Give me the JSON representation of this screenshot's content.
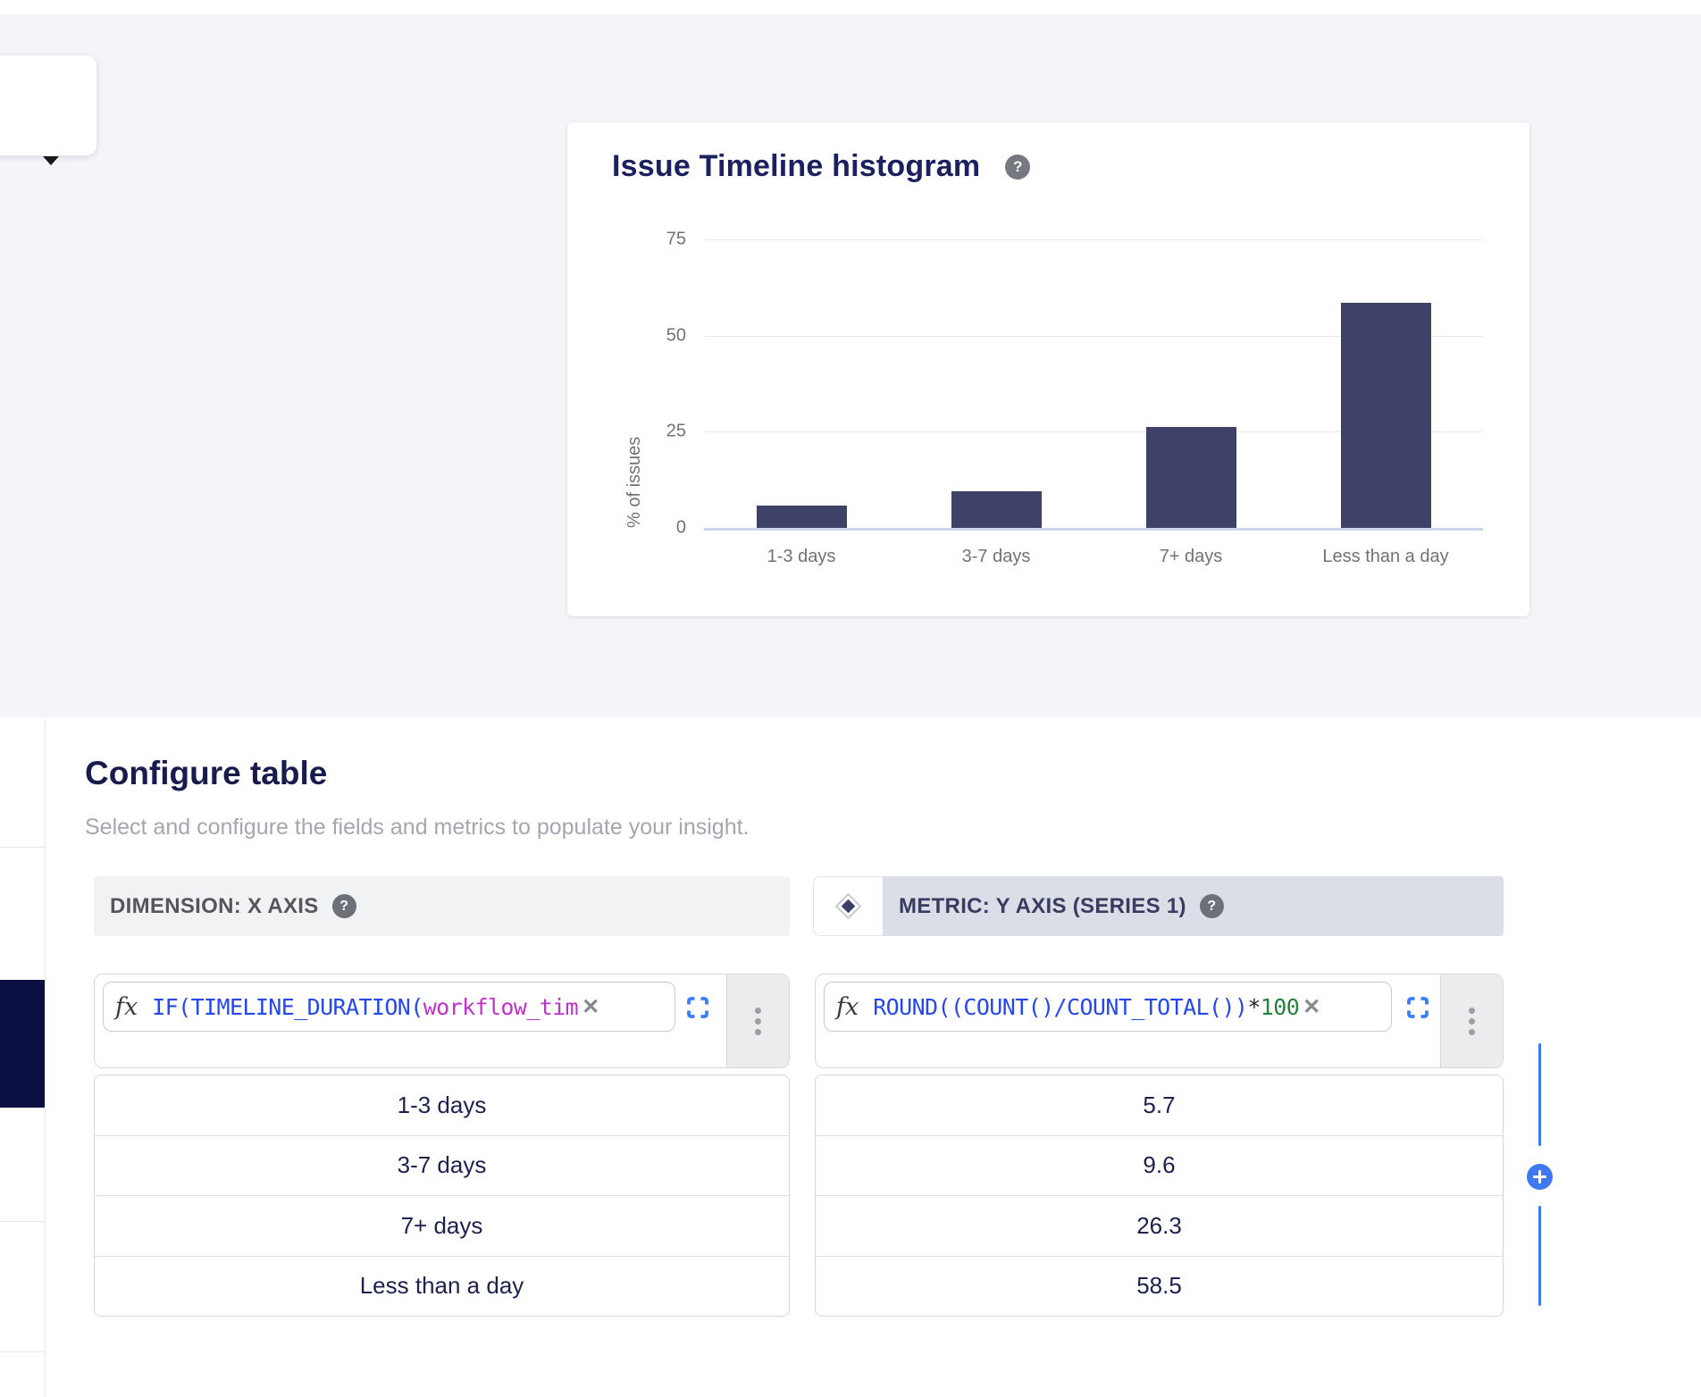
{
  "glyphs": {
    "help": "?",
    "close": "✕",
    "fx": "fx"
  },
  "chart_data": {
    "type": "bar",
    "title": "Issue Timeline histogram",
    "categories": [
      "1-3 days",
      "3-7 days",
      "7+ days",
      "Less than a day"
    ],
    "values": [
      5.7,
      9.6,
      26.3,
      58.5
    ],
    "xlabel": "",
    "ylabel": "% of issues",
    "ylim": [
      0,
      75
    ],
    "yticks": [
      0,
      25,
      50,
      75
    ],
    "grid": true,
    "legend": "none",
    "bar_color": "#3f4268"
  },
  "configure": {
    "heading": "Configure table",
    "subtitle": "Select and configure the fields and metrics to populate your insight.",
    "dimension": {
      "header": "DIMENSION: X AXIS",
      "formula_segments": [
        {
          "t": "IF(TIMELINE_DURATION(",
          "c": "blue"
        },
        {
          "t": "workflow_tim",
          "c": "magenta"
        }
      ],
      "rows": [
        "1-3 days",
        "3-7 days",
        "7+ days",
        "Less than a day"
      ]
    },
    "metric": {
      "header": "METRIC: Y AXIS (SERIES 1)",
      "formula_segments": [
        {
          "t": "ROUND((COUNT()/",
          "c": "blue"
        },
        {
          "t": "COUNT_TOTAL(",
          "c": "blue-underline"
        },
        {
          "t": "))",
          "c": "blue"
        },
        {
          "t": "*",
          "c": "dark"
        },
        {
          "t": "100",
          "c": "green"
        }
      ],
      "rows": [
        "5.7",
        "9.6",
        "26.3",
        "58.5"
      ]
    }
  },
  "colors": {
    "accent_blue": "#3e78f3",
    "bar": "#3f4268",
    "heading_navy": "#171b4d",
    "table_text_navy": "#1c2150",
    "selected_row_navy": "#0b0f42",
    "formula_blue": "#2448ec",
    "formula_magenta": "#c031ce",
    "formula_green": "#27803b",
    "metric_header_bg": "#dcdee7",
    "dimension_header_bg": "#f1f2f3"
  }
}
